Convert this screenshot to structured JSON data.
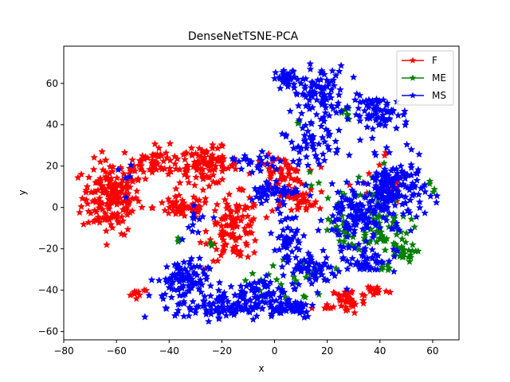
{
  "chart_data": {
    "type": "scatter",
    "title": "DenseNetTSNE-PCA",
    "xlabel": "x",
    "ylabel": "y",
    "xlim": [
      -80,
      70
    ],
    "ylim": [
      -64,
      78
    ],
    "xticks": [
      -80,
      -60,
      -40,
      -20,
      0,
      20,
      40,
      60
    ],
    "yticks": [
      -60,
      -40,
      -20,
      0,
      20,
      40,
      60
    ],
    "legend_position": "top-right",
    "marker": "star",
    "series": [
      {
        "name": "F",
        "color": "#ff0000",
        "clusters": [
          {
            "cx": -62,
            "cy": 5,
            "rx": 10,
            "ry": 16,
            "n": 180
          },
          {
            "cx": -45,
            "cy": 22,
            "rx": 12,
            "ry": 7,
            "n": 70
          },
          {
            "cx": -25,
            "cy": 20,
            "rx": 10,
            "ry": 8,
            "n": 90
          },
          {
            "cx": -35,
            "cy": 0,
            "rx": 10,
            "ry": 5,
            "n": 60
          },
          {
            "cx": -15,
            "cy": -10,
            "rx": 9,
            "ry": 14,
            "n": 110
          },
          {
            "cx": 2,
            "cy": 16,
            "rx": 9,
            "ry": 8,
            "n": 60
          },
          {
            "cx": 10,
            "cy": 2,
            "rx": 7,
            "ry": 5,
            "n": 30
          },
          {
            "cx": 28,
            "cy": -45,
            "rx": 6,
            "ry": 6,
            "n": 40
          },
          {
            "cx": 38,
            "cy": -40,
            "rx": 5,
            "ry": 3,
            "n": 15
          },
          {
            "cx": -52,
            "cy": -41,
            "rx": 4,
            "ry": 2,
            "n": 10
          },
          {
            "cx": 43,
            "cy": 10,
            "rx": 14,
            "ry": 16,
            "n": 18
          },
          {
            "cx": 19,
            "cy": -49,
            "rx": 3,
            "ry": 2,
            "n": 6
          }
        ]
      },
      {
        "name": "ME",
        "color": "#008000",
        "clusters": [
          {
            "cx": 40,
            "cy": -10,
            "rx": 10,
            "ry": 10,
            "n": 60
          },
          {
            "cx": 48,
            "cy": -22,
            "rx": 5,
            "ry": 4,
            "n": 25
          },
          {
            "cx": 25,
            "cy": -12,
            "rx": 5,
            "ry": 6,
            "n": 20
          },
          {
            "cx": 5,
            "cy": -35,
            "rx": 15,
            "ry": 10,
            "n": 25
          },
          {
            "cx": 30,
            "cy": 8,
            "rx": 15,
            "ry": 12,
            "n": 25
          },
          {
            "cx": 9,
            "cy": 41,
            "rx": 1,
            "ry": 1,
            "n": 3
          },
          {
            "cx": 27,
            "cy": 45,
            "rx": 4,
            "ry": 5,
            "n": 6
          },
          {
            "cx": 42,
            "cy": -30,
            "rx": 2,
            "ry": 2,
            "n": 6
          },
          {
            "cx": -36,
            "cy": -15,
            "rx": 2,
            "ry": 2,
            "n": 3
          },
          {
            "cx": -24,
            "cy": -18,
            "rx": 2,
            "ry": 2,
            "n": 3
          },
          {
            "cx": 60,
            "cy": 10,
            "rx": 2,
            "ry": 3,
            "n": 4
          }
        ]
      },
      {
        "name": "MS",
        "color": "#0000ff",
        "clusters": [
          {
            "cx": 5,
            "cy": 62,
            "rx": 4,
            "ry": 4,
            "n": 40
          },
          {
            "cx": 17,
            "cy": 55,
            "rx": 9,
            "ry": 12,
            "n": 100
          },
          {
            "cx": 40,
            "cy": 45,
            "rx": 10,
            "ry": 8,
            "n": 70
          },
          {
            "cx": 14,
            "cy": 30,
            "rx": 10,
            "ry": 8,
            "n": 50
          },
          {
            "cx": 45,
            "cy": 8,
            "rx": 11,
            "ry": 14,
            "n": 170
          },
          {
            "cx": 30,
            "cy": -5,
            "rx": 10,
            "ry": 12,
            "n": 100
          },
          {
            "cx": 35,
            "cy": -25,
            "rx": 10,
            "ry": 6,
            "n": 50
          },
          {
            "cx": -35,
            "cy": -35,
            "rx": 9,
            "ry": 9,
            "n": 90
          },
          {
            "cx": -20,
            "cy": -48,
            "rx": 16,
            "ry": 6,
            "n": 110
          },
          {
            "cx": -5,
            "cy": -40,
            "rx": 8,
            "ry": 6,
            "n": 45
          },
          {
            "cx": 5,
            "cy": -48,
            "rx": 10,
            "ry": 5,
            "n": 60
          },
          {
            "cx": 15,
            "cy": -30,
            "rx": 8,
            "ry": 8,
            "n": 60
          },
          {
            "cx": 0,
            "cy": 8,
            "rx": 9,
            "ry": 5,
            "n": 50
          },
          {
            "cx": 5,
            "cy": -15,
            "rx": 5,
            "ry": 12,
            "n": 45
          },
          {
            "cx": -8,
            "cy": 22,
            "rx": 10,
            "ry": 6,
            "n": 25
          },
          {
            "cx": -30,
            "cy": -5,
            "rx": 6,
            "ry": 8,
            "n": 12
          },
          {
            "cx": -60,
            "cy": 12,
            "rx": 8,
            "ry": 10,
            "n": 5
          }
        ]
      }
    ]
  }
}
